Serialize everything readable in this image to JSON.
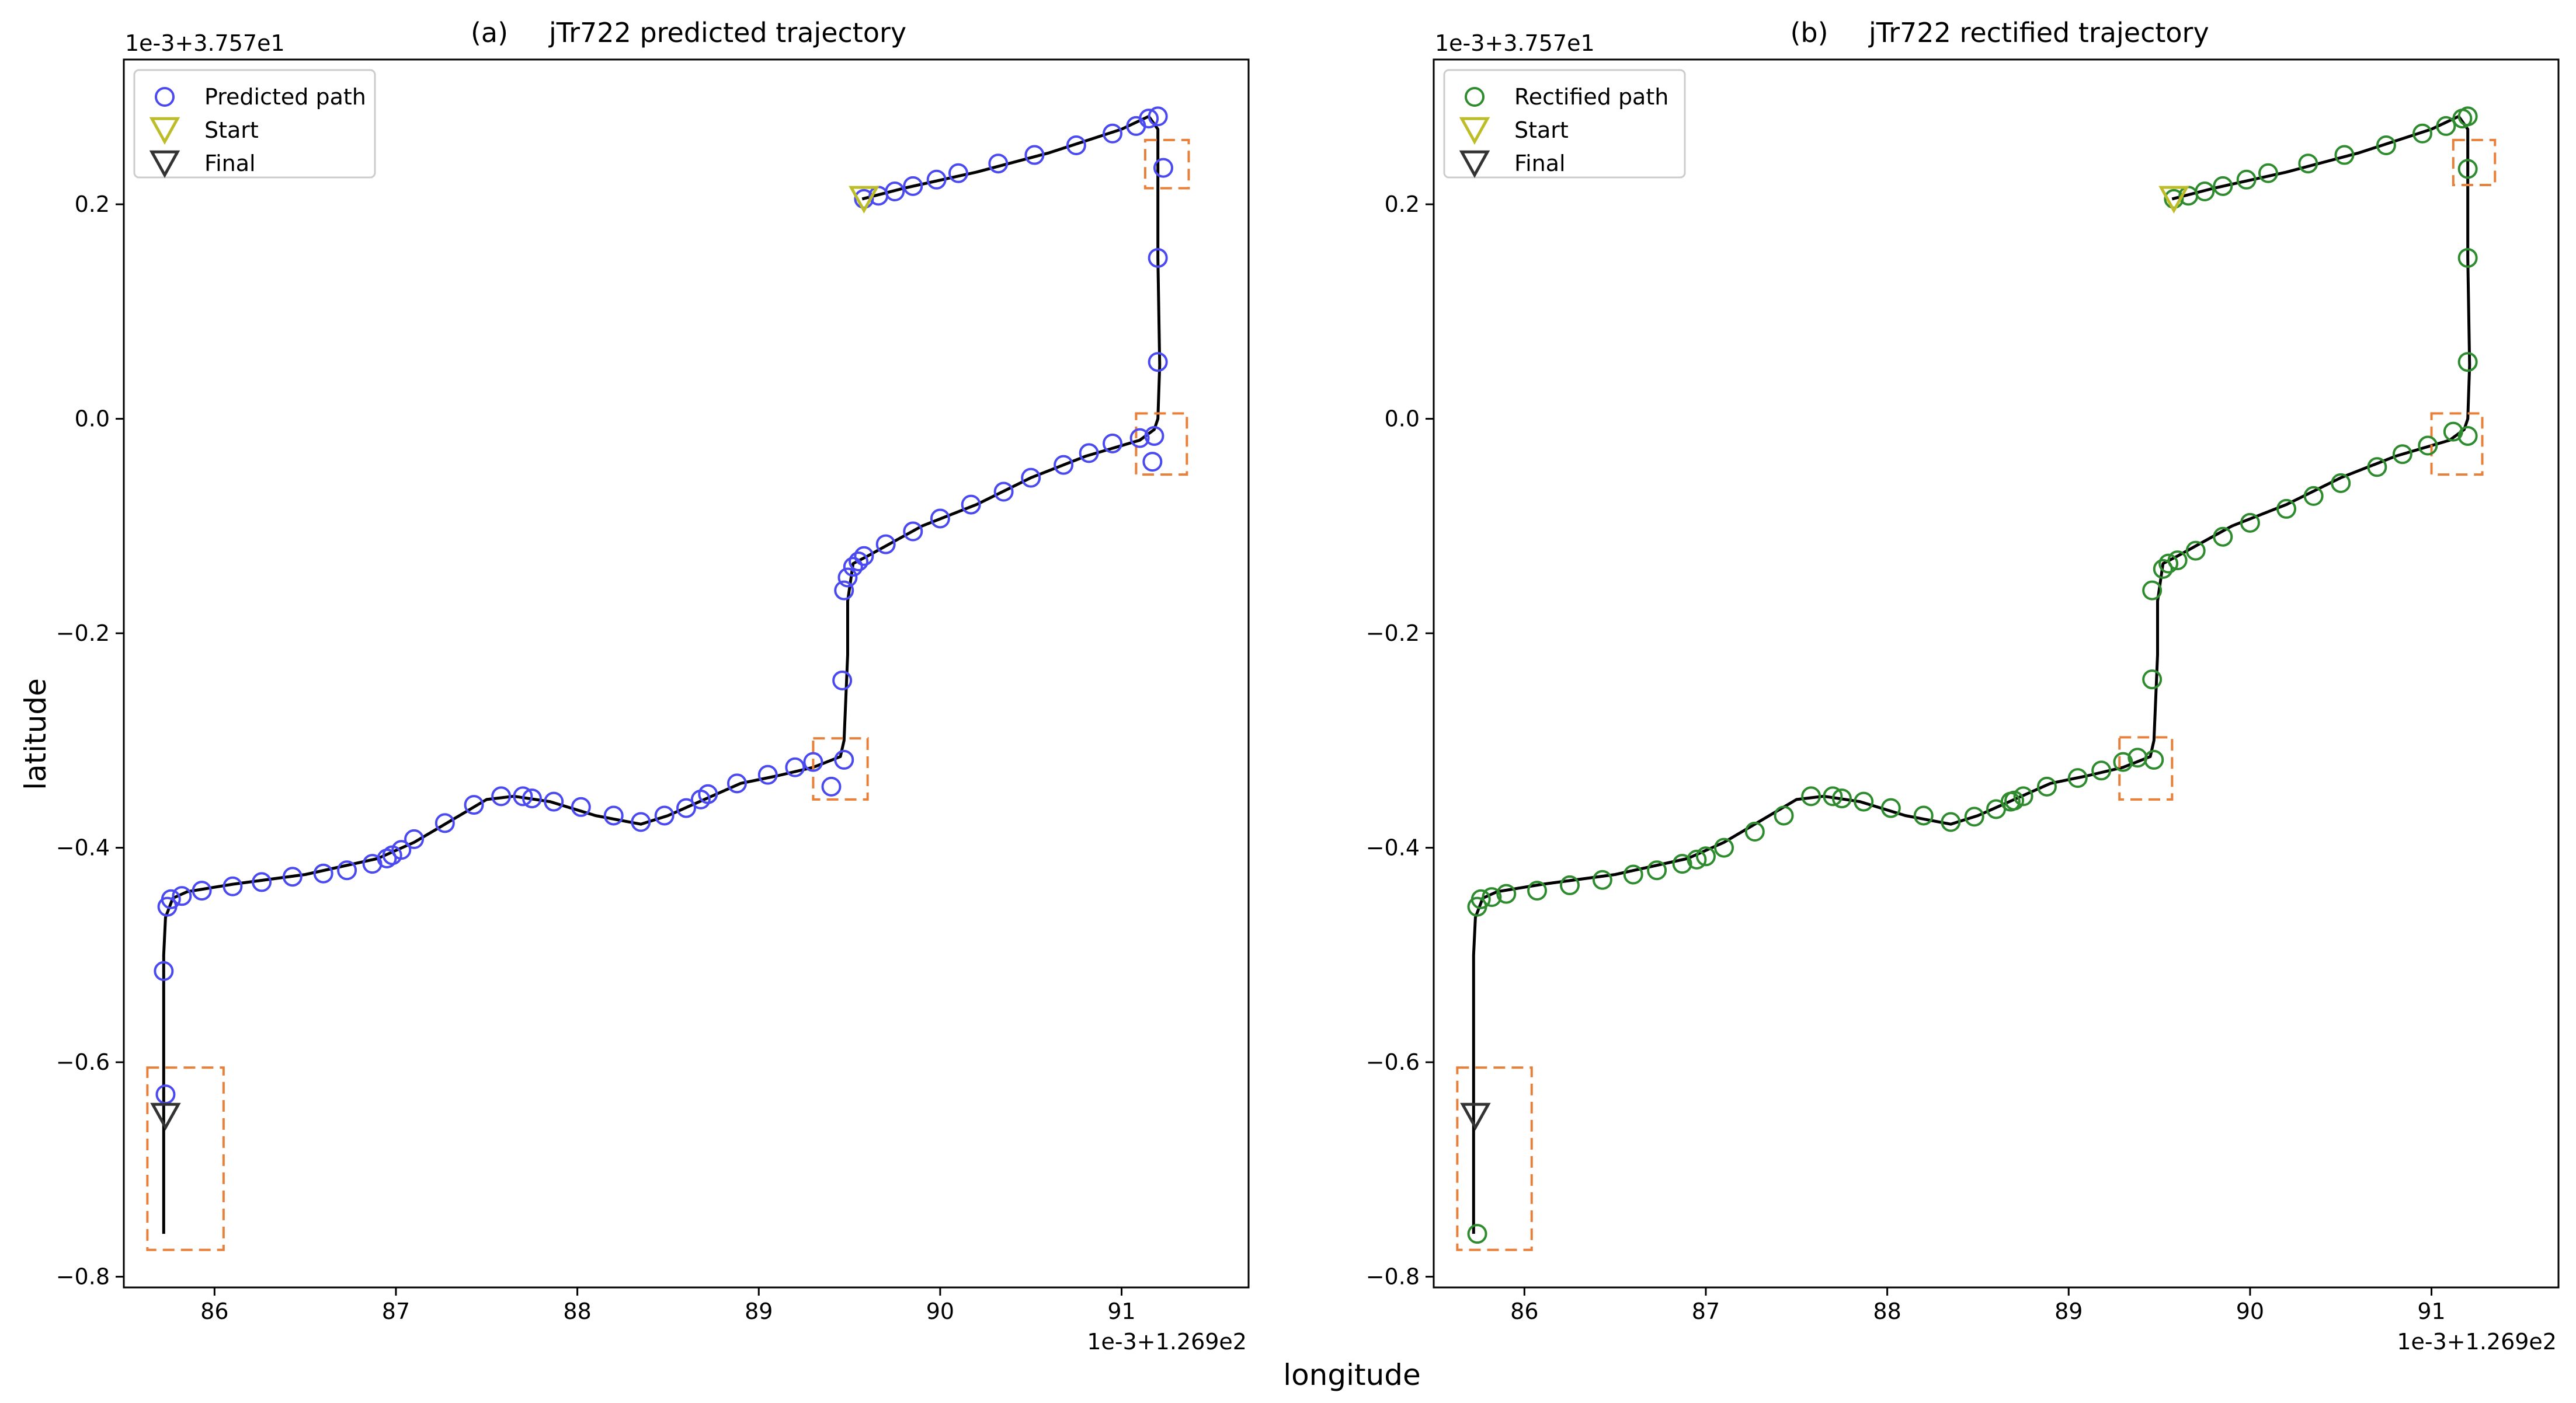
{
  "figure": {
    "xlabel": "longitude",
    "ylabel": "latitude"
  },
  "colors": {
    "predicted": "#4a4af0",
    "rectified": "#2e8b2e",
    "start": "#bdbd2a",
    "final": "#333333",
    "box": "#e8803a",
    "route": "#000000"
  },
  "chart_data": [
    {
      "type": "scatter",
      "panel_label": "(a)",
      "title": "jTr722 predicted trajectory",
      "x_offset_label": "1e-3+1.269e2",
      "y_offset_label": "1e-3+3.757e1",
      "xlabel": "longitude",
      "ylabel": "latitude",
      "xlim": [
        85.5,
        91.7
      ],
      "ylim": [
        -0.81,
        0.335
      ],
      "xticks": [
        86,
        87,
        88,
        89,
        90,
        91
      ],
      "yticks": [
        -0.8,
        -0.6,
        -0.4,
        -0.2,
        0.0,
        0.2
      ],
      "xtick_labels": [
        "86",
        "87",
        "88",
        "89",
        "90",
        "91"
      ],
      "ytick_labels": [
        "−0.8",
        "−0.6",
        "−0.4",
        "−0.2",
        "0.0",
        "0.2"
      ],
      "legend": {
        "position": "upper-left",
        "entries": [
          "Predicted path",
          "Start",
          "Final"
        ]
      },
      "route": [
        [
          89.57,
          0.205
        ],
        [
          89.8,
          0.215
        ],
        [
          90.2,
          0.23
        ],
        [
          90.6,
          0.248
        ],
        [
          91.0,
          0.27
        ],
        [
          91.15,
          0.282
        ],
        [
          91.2,
          0.27
        ],
        [
          91.2,
          0.15
        ],
        [
          91.21,
          0.05
        ],
        [
          91.2,
          0.0
        ],
        [
          91.18,
          -0.01
        ],
        [
          91.1,
          -0.02
        ],
        [
          90.8,
          -0.035
        ],
        [
          90.5,
          -0.055
        ],
        [
          90.2,
          -0.08
        ],
        [
          89.9,
          -0.1
        ],
        [
          89.6,
          -0.128
        ],
        [
          89.52,
          -0.135
        ],
        [
          89.49,
          -0.17
        ],
        [
          89.49,
          -0.22
        ],
        [
          89.48,
          -0.26
        ],
        [
          89.47,
          -0.3
        ],
        [
          89.45,
          -0.315
        ],
        [
          89.3,
          -0.325
        ],
        [
          89.1,
          -0.333
        ],
        [
          88.9,
          -0.34
        ],
        [
          88.7,
          -0.355
        ],
        [
          88.5,
          -0.37
        ],
        [
          88.35,
          -0.378
        ],
        [
          88.1,
          -0.37
        ],
        [
          87.85,
          -0.357
        ],
        [
          87.65,
          -0.352
        ],
        [
          87.5,
          -0.355
        ],
        [
          87.3,
          -0.375
        ],
        [
          87.1,
          -0.395
        ],
        [
          86.9,
          -0.41
        ],
        [
          86.5,
          -0.425
        ],
        [
          86.1,
          -0.434
        ],
        [
          85.85,
          -0.441
        ],
        [
          85.77,
          -0.447
        ],
        [
          85.73,
          -0.465
        ],
        [
          85.72,
          -0.5
        ],
        [
          85.72,
          -0.6
        ],
        [
          85.72,
          -0.7
        ],
        [
          85.72,
          -0.76
        ]
      ],
      "series": [
        {
          "name": "Predicted path",
          "marker": "circle",
          "points": [
            [
              89.58,
              0.205
            ],
            [
              89.66,
              0.208
            ],
            [
              89.75,
              0.212
            ],
            [
              89.85,
              0.217
            ],
            [
              89.98,
              0.223
            ],
            [
              90.1,
              0.229
            ],
            [
              90.32,
              0.238
            ],
            [
              90.52,
              0.246
            ],
            [
              90.75,
              0.255
            ],
            [
              90.95,
              0.266
            ],
            [
              91.08,
              0.273
            ],
            [
              91.15,
              0.28
            ],
            [
              91.2,
              0.282
            ],
            [
              91.23,
              0.234
            ],
            [
              91.2,
              0.15
            ],
            [
              91.2,
              0.053
            ],
            [
              91.18,
              -0.016
            ],
            [
              91.1,
              -0.018
            ],
            [
              91.17,
              -0.04
            ],
            [
              90.95,
              -0.023
            ],
            [
              90.82,
              -0.032
            ],
            [
              90.68,
              -0.043
            ],
            [
              90.5,
              -0.055
            ],
            [
              90.35,
              -0.068
            ],
            [
              90.17,
              -0.08
            ],
            [
              90.0,
              -0.093
            ],
            [
              89.85,
              -0.105
            ],
            [
              89.7,
              -0.117
            ],
            [
              89.58,
              -0.128
            ],
            [
              89.55,
              -0.133
            ],
            [
              89.52,
              -0.138
            ],
            [
              89.49,
              -0.148
            ],
            [
              89.47,
              -0.16
            ],
            [
              89.46,
              -0.244
            ],
            [
              89.47,
              -0.318
            ],
            [
              89.4,
              -0.343
            ],
            [
              89.3,
              -0.32
            ],
            [
              89.2,
              -0.325
            ],
            [
              89.05,
              -0.332
            ],
            [
              88.88,
              -0.34
            ],
            [
              88.72,
              -0.35
            ],
            [
              88.68,
              -0.355
            ],
            [
              88.6,
              -0.363
            ],
            [
              88.48,
              -0.37
            ],
            [
              88.35,
              -0.376
            ],
            [
              88.2,
              -0.37
            ],
            [
              88.02,
              -0.362
            ],
            [
              87.87,
              -0.357
            ],
            [
              87.75,
              -0.354
            ],
            [
              87.7,
              -0.352
            ],
            [
              87.58,
              -0.352
            ],
            [
              87.43,
              -0.36
            ],
            [
              87.27,
              -0.377
            ],
            [
              87.1,
              -0.392
            ],
            [
              87.03,
              -0.402
            ],
            [
              86.98,
              -0.407
            ],
            [
              86.95,
              -0.41
            ],
            [
              86.87,
              -0.415
            ],
            [
              86.73,
              -0.421
            ],
            [
              86.6,
              -0.424
            ],
            [
              86.43,
              -0.427
            ],
            [
              86.26,
              -0.432
            ],
            [
              86.1,
              -0.436
            ],
            [
              85.93,
              -0.44
            ],
            [
              85.82,
              -0.445
            ],
            [
              85.76,
              -0.448
            ],
            [
              85.74,
              -0.455
            ],
            [
              85.72,
              -0.515
            ],
            [
              85.73,
              -0.63
            ]
          ]
        }
      ],
      "start": [
        89.58,
        0.205
      ],
      "final": [
        85.73,
        -0.65
      ],
      "boxes": [
        [
          91.13,
          91.37,
          0.215,
          0.26
        ],
        [
          91.08,
          91.36,
          -0.052,
          0.005
        ],
        [
          89.3,
          89.6,
          -0.355,
          -0.298
        ],
        [
          85.63,
          86.05,
          -0.775,
          -0.605
        ]
      ]
    },
    {
      "type": "scatter",
      "panel_label": "(b)",
      "title": "jTr722 rectified trajectory",
      "x_offset_label": "1e-3+1.269e2",
      "y_offset_label": "1e-3+3.757e1",
      "xlabel": "longitude",
      "ylabel": "latitude",
      "xlim": [
        85.5,
        91.7
      ],
      "ylim": [
        -0.81,
        0.335
      ],
      "xticks": [
        86,
        87,
        88,
        89,
        90,
        91
      ],
      "yticks": [
        -0.8,
        -0.6,
        -0.4,
        -0.2,
        0.0,
        0.2
      ],
      "xtick_labels": [
        "86",
        "87",
        "88",
        "89",
        "90",
        "91"
      ],
      "ytick_labels": [
        "−0.8",
        "−0.6",
        "−0.4",
        "−0.2",
        "0.0",
        "0.2"
      ],
      "legend": {
        "position": "upper-left",
        "entries": [
          "Rectified path",
          "Start",
          "Final"
        ]
      },
      "route": [
        [
          89.57,
          0.205
        ],
        [
          89.8,
          0.215
        ],
        [
          90.2,
          0.23
        ],
        [
          90.6,
          0.248
        ],
        [
          91.0,
          0.27
        ],
        [
          91.15,
          0.282
        ],
        [
          91.2,
          0.27
        ],
        [
          91.2,
          0.15
        ],
        [
          91.21,
          0.05
        ],
        [
          91.2,
          0.0
        ],
        [
          91.18,
          -0.01
        ],
        [
          91.1,
          -0.02
        ],
        [
          90.8,
          -0.035
        ],
        [
          90.5,
          -0.055
        ],
        [
          90.2,
          -0.08
        ],
        [
          89.9,
          -0.1
        ],
        [
          89.6,
          -0.128
        ],
        [
          89.52,
          -0.135
        ],
        [
          89.49,
          -0.17
        ],
        [
          89.49,
          -0.22
        ],
        [
          89.48,
          -0.26
        ],
        [
          89.47,
          -0.3
        ],
        [
          89.45,
          -0.315
        ],
        [
          89.3,
          -0.325
        ],
        [
          89.1,
          -0.333
        ],
        [
          88.9,
          -0.34
        ],
        [
          88.7,
          -0.355
        ],
        [
          88.5,
          -0.37
        ],
        [
          88.35,
          -0.378
        ],
        [
          88.1,
          -0.37
        ],
        [
          87.85,
          -0.357
        ],
        [
          87.65,
          -0.352
        ],
        [
          87.5,
          -0.355
        ],
        [
          87.3,
          -0.375
        ],
        [
          87.1,
          -0.395
        ],
        [
          86.9,
          -0.41
        ],
        [
          86.5,
          -0.425
        ],
        [
          86.1,
          -0.434
        ],
        [
          85.85,
          -0.441
        ],
        [
          85.77,
          -0.447
        ],
        [
          85.73,
          -0.465
        ],
        [
          85.72,
          -0.5
        ],
        [
          85.72,
          -0.6
        ],
        [
          85.72,
          -0.7
        ],
        [
          85.72,
          -0.76
        ]
      ],
      "series": [
        {
          "name": "Rectified path",
          "marker": "circle",
          "points": [
            [
              89.58,
              0.205
            ],
            [
              89.66,
              0.208
            ],
            [
              89.75,
              0.212
            ],
            [
              89.85,
              0.217
            ],
            [
              89.98,
              0.223
            ],
            [
              90.1,
              0.229
            ],
            [
              90.32,
              0.238
            ],
            [
              90.52,
              0.246
            ],
            [
              90.75,
              0.255
            ],
            [
              90.95,
              0.266
            ],
            [
              91.08,
              0.273
            ],
            [
              91.17,
              0.28
            ],
            [
              91.2,
              0.282
            ],
            [
              91.2,
              0.233
            ],
            [
              91.2,
              0.15
            ],
            [
              91.2,
              0.053
            ],
            [
              91.2,
              -0.016
            ],
            [
              91.12,
              -0.012
            ],
            [
              90.98,
              -0.025
            ],
            [
              90.84,
              -0.033
            ],
            [
              90.7,
              -0.045
            ],
            [
              90.5,
              -0.06
            ],
            [
              90.35,
              -0.072
            ],
            [
              90.2,
              -0.084
            ],
            [
              90.0,
              -0.097
            ],
            [
              89.85,
              -0.11
            ],
            [
              89.7,
              -0.123
            ],
            [
              89.6,
              -0.132
            ],
            [
              89.55,
              -0.135
            ],
            [
              89.52,
              -0.14
            ],
            [
              89.46,
              -0.16
            ],
            [
              89.46,
              -0.243
            ],
            [
              89.47,
              -0.318
            ],
            [
              89.38,
              -0.316
            ],
            [
              89.3,
              -0.32
            ],
            [
              89.18,
              -0.328
            ],
            [
              89.05,
              -0.335
            ],
            [
              88.88,
              -0.343
            ],
            [
              88.75,
              -0.352
            ],
            [
              88.7,
              -0.356
            ],
            [
              88.68,
              -0.357
            ],
            [
              88.6,
              -0.364
            ],
            [
              88.48,
              -0.371
            ],
            [
              88.35,
              -0.376
            ],
            [
              88.2,
              -0.37
            ],
            [
              88.02,
              -0.363
            ],
            [
              87.87,
              -0.357
            ],
            [
              87.75,
              -0.354
            ],
            [
              87.7,
              -0.352
            ],
            [
              87.58,
              -0.352
            ],
            [
              87.43,
              -0.37
            ],
            [
              87.27,
              -0.385
            ],
            [
              87.1,
              -0.4
            ],
            [
              87.0,
              -0.408
            ],
            [
              86.95,
              -0.411
            ],
            [
              86.87,
              -0.415
            ],
            [
              86.73,
              -0.421
            ],
            [
              86.6,
              -0.425
            ],
            [
              86.43,
              -0.43
            ],
            [
              86.25,
              -0.435
            ],
            [
              86.07,
              -0.44
            ],
            [
              85.9,
              -0.443
            ],
            [
              85.82,
              -0.446
            ],
            [
              85.76,
              -0.448
            ],
            [
              85.74,
              -0.455
            ],
            [
              85.74,
              -0.76
            ]
          ]
        }
      ],
      "start": [
        89.58,
        0.205
      ],
      "final": [
        85.73,
        -0.65
      ],
      "boxes": [
        [
          91.12,
          91.35,
          0.218,
          0.26
        ],
        [
          91.0,
          91.28,
          -0.052,
          0.005
        ],
        [
          89.28,
          89.57,
          -0.355,
          -0.297
        ],
        [
          85.63,
          86.04,
          -0.775,
          -0.605
        ]
      ]
    }
  ]
}
